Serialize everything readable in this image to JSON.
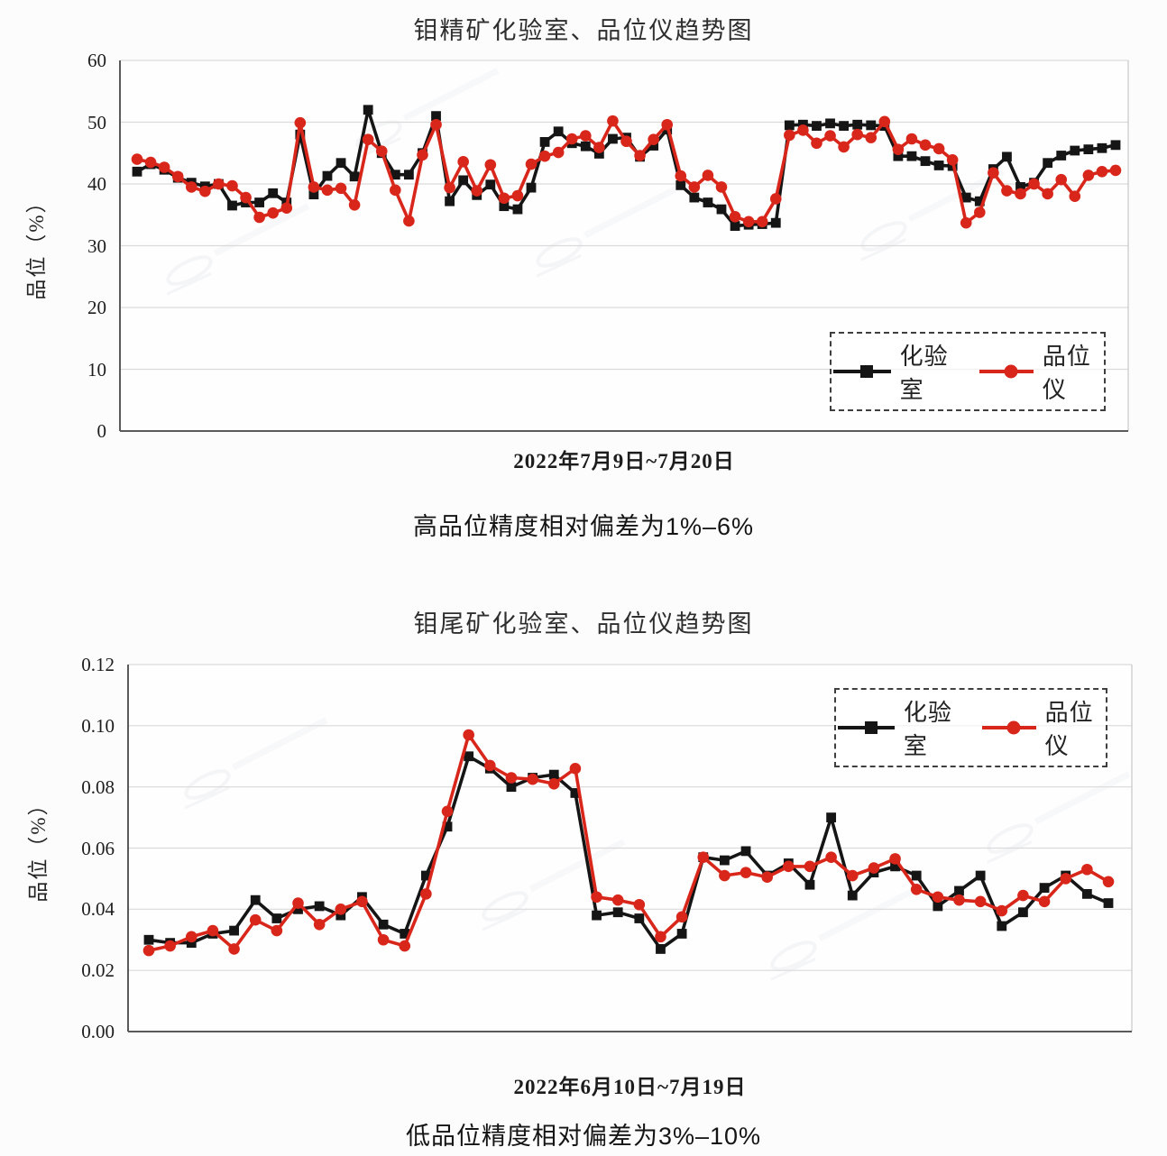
{
  "page": {
    "background": "#fcfcfc"
  },
  "colors": {
    "lab_series": "#151515",
    "analyzer_series": "#d9261b",
    "grid": "#dadada",
    "axis": "#5a5a5a"
  },
  "chart_data": [
    {
      "type": "line",
      "title": "钼精矿化验室、品位仪趋势图",
      "xlabel": "2022年7月9日~7月20日",
      "ylabel": "品位（%）",
      "caption": "高品位精度相对偏差为1%-6%",
      "caption_exact": "高品位精度相对偏差为1%–6%",
      "ylim": [
        0,
        60
      ],
      "ytick_step": 10,
      "ytick_decimals": 0,
      "grid": true,
      "x_axis": {
        "tick_labels": false,
        "note": "evenly spaced samples over 2022-07-09 to 2022-07-20"
      },
      "legend": {
        "position": "inside-lower-right",
        "border": "dashed"
      },
      "n_points": 73,
      "series": [
        {
          "name": "化验室",
          "color": "#151515",
          "marker": "square",
          "values": [
            42,
            43.2,
            42.3,
            41,
            40.2,
            39.6,
            40,
            36.5,
            37,
            37,
            38.5,
            37,
            48,
            38.3,
            41.3,
            43.4,
            41.2,
            52,
            45,
            41.5,
            41.5,
            45,
            51,
            37.2,
            40.6,
            38.2,
            39.9,
            36.4,
            35.9,
            39.4,
            46.8,
            48.5,
            46.6,
            46.1,
            44.9,
            47.3,
            47.5,
            44.4,
            46.2,
            48.8,
            39.8,
            37.8,
            37,
            35.9,
            33.2,
            33.4,
            33.5,
            33.7,
            49.5,
            49.6,
            49.4,
            49.8,
            49.4,
            49.6,
            49.5,
            49.4,
            44.5,
            44.5,
            43.7,
            43,
            42.9,
            37.8,
            37.2,
            42.4,
            44.4,
            39.5,
            40.2,
            43.4,
            44.6,
            45.4,
            45.6,
            45.8,
            46.3
          ]
        },
        {
          "name": "品位仪",
          "color": "#d9261b",
          "marker": "circle",
          "values": [
            44,
            43.5,
            42.7,
            41.2,
            39.5,
            38.8,
            40,
            39.7,
            37.8,
            34.6,
            35.3,
            36.1,
            49.9,
            39.5,
            39,
            39.3,
            36.6,
            47.2,
            45.3,
            39,
            34,
            44.7,
            49.6,
            39.4,
            43.6,
            38.9,
            43.1,
            37.7,
            38.1,
            43.2,
            44.5,
            45.1,
            47.3,
            47.8,
            45.9,
            50.2,
            46.9,
            44.6,
            47.2,
            49.6,
            41.3,
            39.5,
            41.4,
            39.5,
            34.7,
            33.9,
            33.9,
            37.6,
            47.9,
            48.7,
            46.6,
            47.8,
            46,
            48,
            47.5,
            50.1,
            45.6,
            47.3,
            46.3,
            45.7,
            43.9,
            33.7,
            35.4,
            41.8,
            38.9,
            38.4,
            40,
            38.4,
            40.7,
            38,
            41.4,
            42,
            42.2
          ]
        }
      ]
    },
    {
      "type": "line",
      "title": "钼尾矿化验室、品位仪趋势图",
      "xlabel": "2022年6月10日~7月19日",
      "ylabel": "品位（%）",
      "caption": "低品位精度相对偏差为3%-10%",
      "caption_exact": "低品位精度相对偏差为3%–10%",
      "ylim": [
        0,
        0.12
      ],
      "ytick_step": 0.02,
      "ytick_decimals": 2,
      "grid": true,
      "x_axis": {
        "tick_labels": false,
        "note": "evenly spaced samples over 2022-06-10 to 2022-07-19"
      },
      "legend": {
        "position": "inside-upper-right",
        "border": "dashed"
      },
      "n_points": 46,
      "series": [
        {
          "name": "化验室",
          "color": "#151515",
          "marker": "square",
          "values": [
            0.03,
            0.029,
            0.029,
            0.032,
            0.033,
            0.043,
            0.037,
            0.04,
            0.041,
            0.038,
            0.044,
            0.035,
            0.032,
            0.051,
            0.067,
            0.09,
            0.086,
            0.08,
            0.083,
            0.084,
            0.078,
            0.038,
            0.039,
            0.037,
            0.027,
            0.032,
            0.057,
            0.056,
            0.059,
            0.051,
            0.055,
            0.048,
            0.07,
            0.0445,
            0.052,
            0.054,
            0.051,
            0.041,
            0.046,
            0.051,
            0.0345,
            0.039,
            0.047,
            0.051,
            0.045,
            0.042
          ]
        },
        {
          "name": "品位仪",
          "color": "#d9261b",
          "marker": "circle",
          "values": [
            0.0265,
            0.028,
            0.031,
            0.033,
            0.027,
            0.0365,
            0.033,
            0.042,
            0.035,
            0.04,
            0.0425,
            0.03,
            0.028,
            0.045,
            0.072,
            0.097,
            0.087,
            0.083,
            0.0825,
            0.081,
            0.086,
            0.044,
            0.043,
            0.0415,
            0.031,
            0.0375,
            0.057,
            0.051,
            0.052,
            0.0505,
            0.054,
            0.054,
            0.057,
            0.051,
            0.0535,
            0.0565,
            0.0465,
            0.044,
            0.043,
            0.0425,
            0.0395,
            0.0445,
            0.0425,
            0.05,
            0.053,
            0.049
          ]
        }
      ]
    }
  ]
}
